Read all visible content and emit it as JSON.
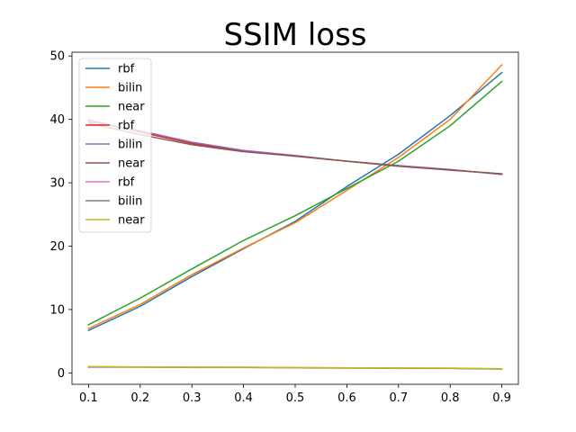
{
  "chart_data": {
    "type": "line",
    "title": "SSIM loss",
    "xlabel": "",
    "ylabel": "",
    "x": [
      0.1,
      0.2,
      0.3,
      0.4,
      0.5,
      0.6,
      0.7,
      0.8,
      0.9
    ],
    "xlim": [
      0.068,
      0.932
    ],
    "ylim": [
      -1.8,
      50.6
    ],
    "xticks": [
      "0.1",
      "0.2",
      "0.3",
      "0.4",
      "0.5",
      "0.6",
      "0.7",
      "0.8",
      "0.9"
    ],
    "yticks": [
      "0",
      "10",
      "20",
      "30",
      "40",
      "50"
    ],
    "grid": false,
    "legend_position": "top-left",
    "series": [
      {
        "name": "rbf",
        "color": "#1f77b4",
        "values": [
          6.7,
          10.5,
          15.2,
          19.6,
          23.9,
          29.4,
          34.5,
          40.6,
          47.4
        ]
      },
      {
        "name": "bilin",
        "color": "#ff7f0e",
        "values": [
          7.0,
          10.8,
          15.5,
          19.7,
          23.7,
          28.8,
          34.0,
          40.0,
          48.6
        ]
      },
      {
        "name": "near",
        "color": "#2ca02c",
        "values": [
          7.6,
          11.8,
          16.4,
          20.9,
          24.8,
          29.1,
          33.4,
          39.0,
          46.0
        ]
      },
      {
        "name": "rbf",
        "color": "#d62728",
        "values": [
          39.9,
          38.0,
          36.2,
          35.0,
          34.2,
          33.4,
          32.7,
          32.0,
          31.4
        ]
      },
      {
        "name": "bilin",
        "color": "#9467bd",
        "values": [
          39.6,
          38.2,
          36.4,
          35.1,
          34.3,
          33.4,
          32.7,
          32.1,
          31.3
        ]
      },
      {
        "name": "near",
        "color": "#8c564b",
        "values": [
          39.4,
          37.6,
          36.0,
          34.9,
          34.2,
          33.4,
          32.6,
          32.0,
          31.4
        ]
      },
      {
        "name": "rbf",
        "color": "#e377c2",
        "values": [
          0.9,
          0.9,
          0.85,
          0.85,
          0.8,
          0.75,
          0.7,
          0.7,
          0.6
        ]
      },
      {
        "name": "bilin",
        "color": "#7f7f7f",
        "values": [
          0.95,
          0.92,
          0.9,
          0.88,
          0.82,
          0.78,
          0.75,
          0.72,
          0.62
        ]
      },
      {
        "name": "near",
        "color": "#bcbd22",
        "values": [
          1.0,
          0.95,
          0.92,
          0.9,
          0.85,
          0.8,
          0.78,
          0.75,
          0.65
        ]
      }
    ]
  }
}
